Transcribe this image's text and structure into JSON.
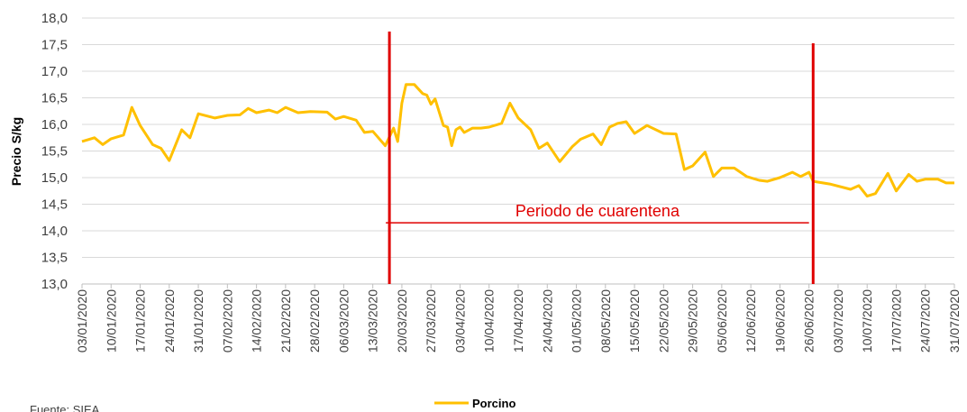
{
  "chart_data": {
    "type": "line",
    "ylabel": "Precio S/kg",
    "source": "Fuente: SIEA",
    "ylim": [
      13,
      18
    ],
    "yticks": [
      {
        "value": 13,
        "label": "13,0"
      },
      {
        "value": 13.5,
        "label": "13,5"
      },
      {
        "value": 14,
        "label": "14,0"
      },
      {
        "value": 14.5,
        "label": "14,5"
      },
      {
        "value": 15,
        "label": "15,0"
      },
      {
        "value": 15.5,
        "label": "15,5"
      },
      {
        "value": 16,
        "label": "16,0"
      },
      {
        "value": 16.5,
        "label": "16,5"
      },
      {
        "value": 17,
        "label": "17,0"
      },
      {
        "value": 17.5,
        "label": "17,5"
      },
      {
        "value": 18,
        "label": "18,0"
      }
    ],
    "xlim": [
      "03/01/2020",
      "31/07/2020"
    ],
    "xticks": [
      "03/01/2020",
      "10/01/2020",
      "17/01/2020",
      "24/01/2020",
      "31/01/2020",
      "07/02/2020",
      "14/02/2020",
      "21/02/2020",
      "28/02/2020",
      "06/03/2020",
      "13/03/2020",
      "20/03/2020",
      "27/03/2020",
      "03/04/2020",
      "10/04/2020",
      "17/04/2020",
      "24/04/2020",
      "01/05/2020",
      "08/05/2020",
      "15/05/2020",
      "22/05/2020",
      "29/05/2020",
      "05/06/2020",
      "12/06/2020",
      "19/06/2020",
      "26/06/2020",
      "03/07/2020",
      "10/07/2020",
      "17/07/2020",
      "24/07/2020",
      "31/07/2020"
    ],
    "grid": true,
    "x": [
      "03/01/2020",
      "06/01/2020",
      "08/01/2020",
      "10/01/2020",
      "13/01/2020",
      "15/01/2020",
      "17/01/2020",
      "20/01/2020",
      "22/01/2020",
      "24/01/2020",
      "27/01/2020",
      "29/01/2020",
      "31/01/2020",
      "04/02/2020",
      "07/02/2020",
      "10/02/2020",
      "12/02/2020",
      "14/02/2020",
      "17/02/2020",
      "19/02/2020",
      "21/02/2020",
      "24/02/2020",
      "27/02/2020",
      "02/03/2020",
      "04/03/2020",
      "06/03/2020",
      "09/03/2020",
      "11/03/2020",
      "13/03/2020",
      "16/03/2020",
      "18/03/2020",
      "19/03/2020",
      "20/03/2020",
      "21/03/2020",
      "23/03/2020",
      "25/03/2020",
      "26/03/2020",
      "27/03/2020",
      "28/03/2020",
      "30/03/2020",
      "31/03/2020",
      "01/04/2020",
      "02/04/2020",
      "03/04/2020",
      "04/04/2020",
      "06/04/2020",
      "08/04/2020",
      "10/04/2020",
      "13/04/2020",
      "15/04/2020",
      "17/04/2020",
      "20/04/2020",
      "22/04/2020",
      "24/04/2020",
      "27/04/2020",
      "30/04/2020",
      "02/05/2020",
      "05/05/2020",
      "07/05/2020",
      "09/05/2020",
      "11/05/2020",
      "13/05/2020",
      "15/05/2020",
      "18/05/2020",
      "22/05/2020",
      "25/05/2020",
      "27/05/2020",
      "29/05/2020",
      "01/06/2020",
      "03/06/2020",
      "05/06/2020",
      "08/06/2020",
      "11/06/2020",
      "14/06/2020",
      "16/06/2020",
      "19/06/2020",
      "22/06/2020",
      "24/06/2020",
      "26/06/2020",
      "27/06/2020",
      "01/07/2020",
      "06/07/2020",
      "08/07/2020",
      "10/07/2020",
      "12/07/2020",
      "15/07/2020",
      "17/07/2020",
      "20/07/2020",
      "22/07/2020",
      "24/07/2020",
      "27/07/2020",
      "29/07/2020",
      "31/07/2020"
    ],
    "series": [
      {
        "name": "Porcino",
        "color": "#ffc000",
        "values": [
          15.68,
          15.75,
          15.62,
          15.73,
          15.8,
          16.32,
          15.98,
          15.62,
          15.55,
          15.32,
          15.9,
          15.75,
          16.2,
          16.12,
          16.17,
          16.18,
          16.3,
          16.22,
          16.27,
          16.22,
          16.32,
          16.22,
          16.24,
          16.23,
          16.1,
          16.15,
          16.08,
          15.85,
          15.87,
          15.6,
          15.93,
          15.68,
          16.4,
          16.75,
          16.75,
          16.58,
          16.55,
          16.38,
          16.48,
          15.98,
          15.95,
          15.6,
          15.9,
          15.95,
          15.85,
          15.93,
          15.93,
          15.95,
          16.02,
          16.4,
          16.12,
          15.9,
          15.55,
          15.65,
          15.3,
          15.58,
          15.72,
          15.82,
          15.62,
          15.95,
          16.02,
          16.05,
          15.83,
          15.98,
          15.83,
          15.82,
          15.15,
          15.22,
          15.48,
          15.02,
          15.18,
          15.18,
          15.02,
          14.95,
          14.93,
          15.0,
          15.1,
          15.02,
          15.1,
          14.93,
          14.88,
          14.78,
          14.85,
          14.65,
          14.7,
          15.08,
          14.75,
          15.06,
          14.93,
          14.97,
          14.97,
          14.9,
          14.9
        ]
      }
    ],
    "legend": "bottom",
    "vlines": {
      "color": "#e00000",
      "x": [
        "17/03/2020",
        "27/06/2020"
      ]
    },
    "annotation": {
      "text": "Periodo de cuarentena",
      "color": "#e00000",
      "x": [
        "17/03/2020",
        "26/06/2020"
      ],
      "y": 14.15
    }
  }
}
